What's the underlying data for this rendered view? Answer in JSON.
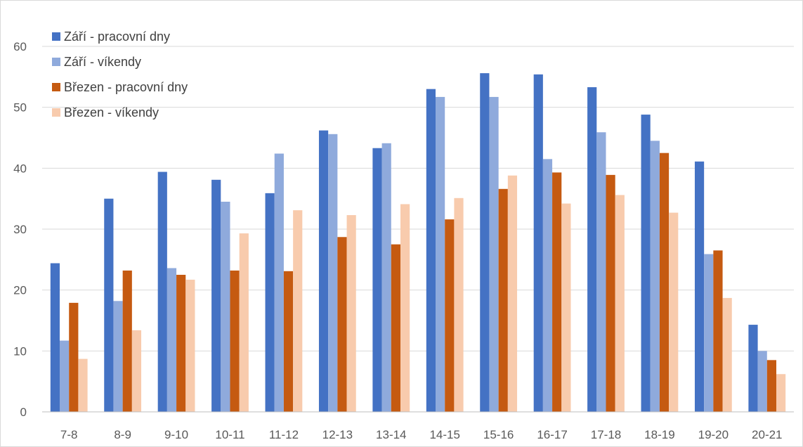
{
  "chart_data": {
    "type": "bar",
    "categories": [
      "7-8",
      "8-9",
      "9-10",
      "10-11",
      "11-12",
      "12-13",
      "13-14",
      "14-15",
      "15-16",
      "16-17",
      "17-18",
      "18-19",
      "19-20",
      "20-21"
    ],
    "series": [
      {
        "name": "Září - pracovní dny",
        "color": "#4472c4",
        "values": [
          24.4,
          35.0,
          39.4,
          38.1,
          35.9,
          46.2,
          43.3,
          53.0,
          55.6,
          55.4,
          53.3,
          48.8,
          41.1,
          14.3
        ]
      },
      {
        "name": "Září - víkendy",
        "color": "#8faadc",
        "values": [
          11.7,
          18.2,
          23.6,
          34.5,
          42.4,
          45.6,
          44.1,
          51.7,
          51.7,
          41.5,
          45.9,
          44.5,
          25.9,
          10.0
        ]
      },
      {
        "name": "Březen - pracovní dny",
        "color": "#c55a11",
        "values": [
          17.9,
          23.2,
          22.5,
          23.2,
          23.1,
          28.7,
          27.5,
          31.6,
          36.6,
          39.3,
          38.9,
          42.5,
          26.5,
          8.5
        ]
      },
      {
        "name": "Březen - víkendy",
        "color": "#f8cbad",
        "values": [
          8.7,
          13.4,
          21.7,
          29.3,
          33.1,
          32.3,
          34.1,
          35.1,
          38.8,
          34.2,
          35.6,
          32.7,
          18.7,
          6.2
        ]
      }
    ],
    "ylim": [
      0,
      60
    ],
    "yticks": [
      0,
      10,
      20,
      30,
      40,
      50,
      60
    ],
    "grid": true,
    "legend_position": "top-left",
    "colors": {
      "grid": "#d9d9d9",
      "axis": "#bfbfbf",
      "tick_text": "#595959"
    }
  }
}
